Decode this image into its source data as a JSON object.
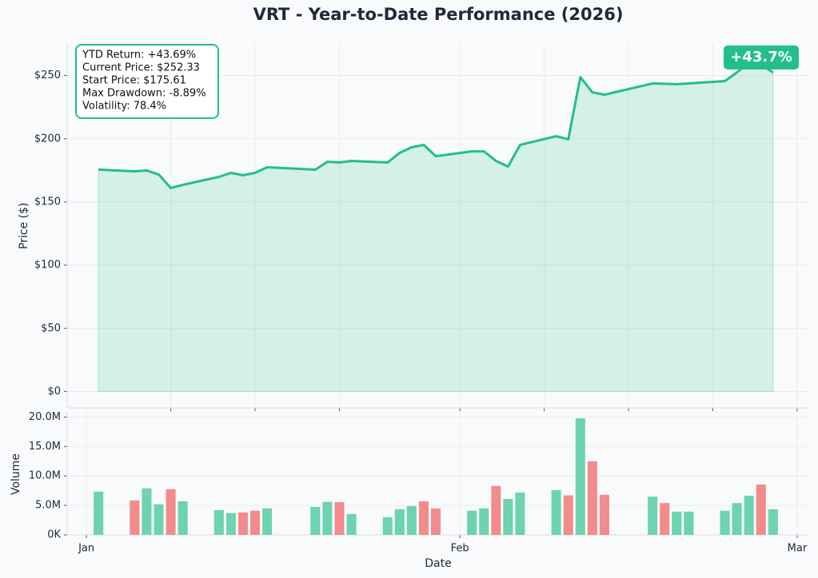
{
  "chart_data": [
    {
      "type": "area",
      "title": "VRT - Year-to-Date Performance (2026)",
      "y_label": "Price ($)",
      "annotation": [
        "YTD Return: +43.69%",
        "Current Price: $252.33",
        "Start Price: $175.61",
        "Max Drawdown: -8.89%",
        "Volatility: 78.4%"
      ],
      "badge": "+43.7%",
      "color": "#22bf8a",
      "x": [
        1,
        4,
        5,
        6,
        7,
        8,
        11,
        12,
        13,
        14,
        15,
        19,
        20,
        21,
        22,
        25,
        26,
        27,
        28,
        29,
        32,
        33,
        34,
        35,
        36,
        39,
        40,
        41,
        42,
        43,
        47,
        48,
        49,
        50,
        53,
        54,
        55,
        56,
        57
      ],
      "values": [
        175.6,
        174.2,
        174.9,
        171.7,
        161.0,
        163.5,
        169.8,
        173.0,
        171.1,
        173.0,
        177.4,
        175.5,
        181.8,
        181.2,
        182.4,
        181.2,
        188.8,
        193.2,
        195.1,
        186.2,
        190.0,
        190.0,
        182.4,
        178.0,
        195.1,
        202.0,
        199.5,
        248.7,
        236.7,
        234.8,
        243.7,
        243.4,
        243.1,
        243.7,
        245.6,
        252.5,
        260.0,
        258.8,
        252.33
      ],
      "xlim": [
        -1.6,
        60
      ],
      "ylim": [
        -13,
        275
      ],
      "yticks": [
        {
          "value": 0,
          "label": "$0"
        },
        {
          "value": 50,
          "label": "$50"
        },
        {
          "value": 100,
          "label": "$100"
        },
        {
          "value": 150,
          "label": "$150"
        },
        {
          "value": 200,
          "label": "$200"
        },
        {
          "value": 250,
          "label": "$250"
        }
      ],
      "xticks": [
        7,
        14,
        21,
        31,
        38,
        45,
        52,
        59
      ],
      "grid": true
    },
    {
      "type": "bar",
      "x_label": "Date",
      "y_label": "Volume",
      "x": [
        1,
        4,
        5,
        6,
        7,
        8,
        11,
        12,
        13,
        14,
        15,
        19,
        20,
        21,
        22,
        25,
        26,
        27,
        28,
        29,
        32,
        33,
        34,
        35,
        36,
        39,
        40,
        41,
        42,
        43,
        47,
        48,
        49,
        50,
        53,
        54,
        55,
        56,
        57
      ],
      "values": [
        7.35,
        5.85,
        7.9,
        5.2,
        7.75,
        5.7,
        4.2,
        3.7,
        3.8,
        4.1,
        4.5,
        4.75,
        5.6,
        5.55,
        3.55,
        3.0,
        4.35,
        4.9,
        5.7,
        4.5,
        4.1,
        4.5,
        8.3,
        6.1,
        7.2,
        7.6,
        6.7,
        19.8,
        12.5,
        6.8,
        6.5,
        5.4,
        3.95,
        3.95,
        4.1,
        5.4,
        6.65,
        8.55,
        4.35
      ],
      "colors": [
        "#6dd3b0",
        "#f28b8b",
        "#6dd3b0",
        "#6dd3b0",
        "#f28b8b",
        "#6dd3b0",
        "#6dd3b0",
        "#6dd3b0",
        "#f28b8b",
        "#f28b8b",
        "#6dd3b0",
        "#6dd3b0",
        "#6dd3b0",
        "#f28b8b",
        "#6dd3b0",
        "#6dd3b0",
        "#6dd3b0",
        "#6dd3b0",
        "#f28b8b",
        "#f28b8b",
        "#6dd3b0",
        "#6dd3b0",
        "#f28b8b",
        "#6dd3b0",
        "#6dd3b0",
        "#6dd3b0",
        "#f28b8b",
        "#6dd3b0",
        "#f28b8b",
        "#f28b8b",
        "#6dd3b0",
        "#f28b8b",
        "#6dd3b0",
        "#6dd3b0",
        "#6dd3b0",
        "#6dd3b0",
        "#6dd3b0",
        "#f28b8b",
        "#6dd3b0"
      ],
      "xlim": [
        -1.6,
        60
      ],
      "ylim": [
        0,
        21
      ],
      "yticks": [
        {
          "value": 0,
          "label": "0K"
        },
        {
          "value": 5,
          "label": "5.0M"
        },
        {
          "value": 10,
          "label": "10.0M"
        },
        {
          "value": 15,
          "label": "15.0M"
        },
        {
          "value": 20,
          "label": "20.0M"
        }
      ],
      "xticks": [
        {
          "value": 0,
          "label": "Jan"
        },
        {
          "value": 31,
          "label": "Feb"
        },
        {
          "value": 59,
          "label": "Mar"
        }
      ],
      "grid": true
    }
  ]
}
